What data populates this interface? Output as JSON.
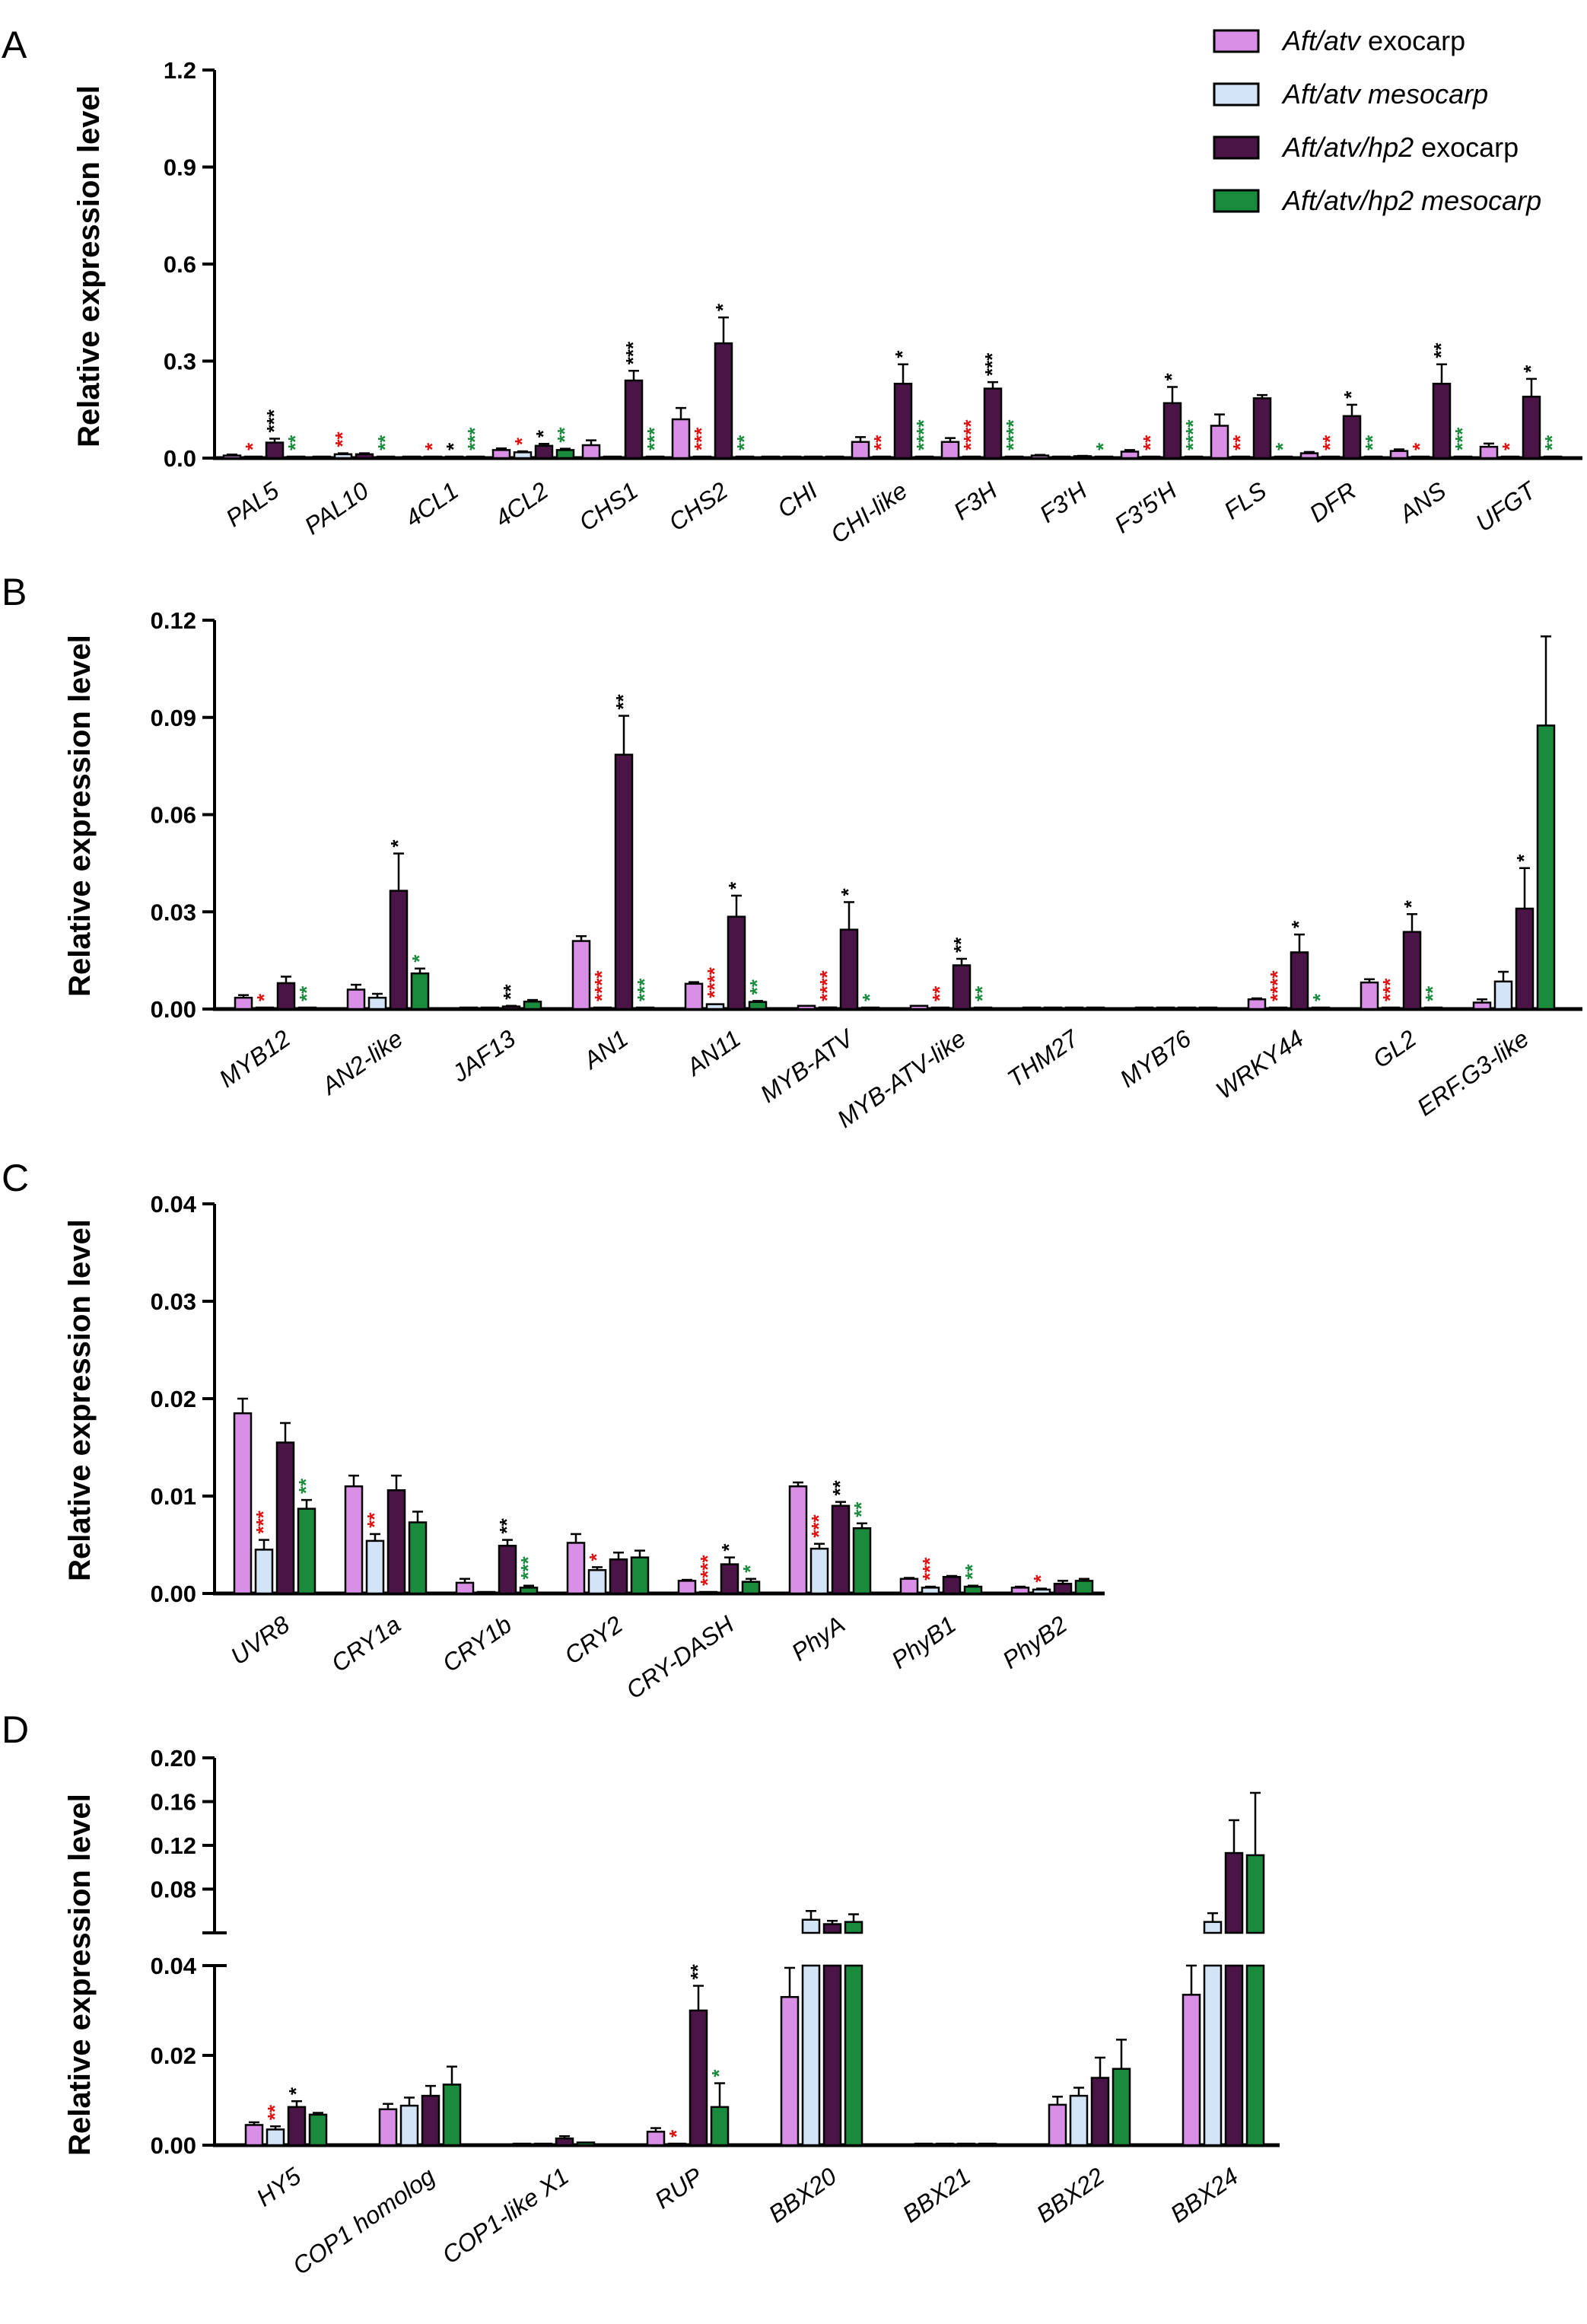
{
  "legend": {
    "entries": [
      {
        "pre": "Aft/atv",
        "post": " exocarp",
        "pre_italic": true,
        "post_italic": false,
        "color": "#DA8FE6"
      },
      {
        "pre": "Aft/atv mesocarp",
        "post": "",
        "pre_italic": true,
        "post_italic": true,
        "color": "#D4E4F7"
      },
      {
        "pre": "Aft/atv/hp2",
        "post": " exocarp",
        "pre_italic": true,
        "post_italic": false,
        "color": "#4A1446"
      },
      {
        "pre": "Aft/atv/hp2 mesocarp",
        "post": "",
        "pre_italic": true,
        "post_italic": true,
        "color": "#1A8A3C"
      }
    ]
  },
  "colors": {
    "series": [
      "#DA8FE6",
      "#D4E4F7",
      "#4A1446",
      "#1A8A3C"
    ],
    "star_black": "#000000",
    "star_red": "#E01010",
    "star_green": "#1A8A3C"
  },
  "chart_data": [
    {
      "type": "bar",
      "panel_label": "A",
      "ylabel": "Relative expression level",
      "ylim": [
        0,
        1.2
      ],
      "yticks": [
        "0.0",
        "0.3",
        "0.6",
        "0.9",
        "1.2"
      ],
      "ytick_values": [
        0,
        0.3,
        0.6,
        0.9,
        1.2
      ],
      "series_names": [
        "Aft/atv exocarp",
        "Aft/atv mesocarp",
        "Aft/atv/hp2 exocarp",
        "Aft/atv/hp2 mesocarp"
      ],
      "categories": [
        "PAL5",
        "PAL10",
        "4CL1",
        "4CL2",
        "CHS1",
        "CHS2",
        "CHI",
        "CHI-like",
        "F3H",
        "F3'H",
        "F3'5'H",
        "FLS",
        "DFR",
        "ANS",
        "UFGT"
      ],
      "values": [
        [
          0.008,
          0.002,
          0.048,
          0.003
        ],
        [
          0.003,
          0.012,
          0.012,
          0.003
        ],
        [
          0.002,
          0.001,
          0.003,
          0.001
        ],
        [
          0.025,
          0.018,
          0.038,
          0.025
        ],
        [
          0.04,
          0.002,
          0.24,
          0.003
        ],
        [
          0.12,
          0.003,
          0.355,
          0.004
        ],
        [
          0.002,
          0.001,
          0.002,
          0.001
        ],
        [
          0.05,
          0.003,
          0.23,
          0.004
        ],
        [
          0.05,
          0.003,
          0.215,
          0.004
        ],
        [
          0.008,
          0.002,
          0.006,
          0.001
        ],
        [
          0.02,
          0.003,
          0.17,
          0.004
        ],
        [
          0.1,
          0.003,
          0.185,
          0.004
        ],
        [
          0.015,
          0.002,
          0.13,
          0.004
        ],
        [
          0.022,
          0.003,
          0.23,
          0.004
        ],
        [
          0.035,
          0.003,
          0.19,
          0.004
        ]
      ],
      "errors": [
        [
          0.003,
          0,
          0.012,
          0
        ],
        [
          0.001,
          0.003,
          0.003,
          0
        ],
        [
          0,
          0,
          0,
          0
        ],
        [
          0.005,
          0.003,
          0.006,
          0.004
        ],
        [
          0.015,
          0,
          0.03,
          0
        ],
        [
          0.035,
          0,
          0.08,
          0
        ],
        [
          0,
          0,
          0,
          0
        ],
        [
          0.015,
          0,
          0.06,
          0
        ],
        [
          0.012,
          0,
          0.02,
          0
        ],
        [
          0.002,
          0,
          0.001,
          0
        ],
        [
          0.005,
          0,
          0.05,
          0
        ],
        [
          0.035,
          0,
          0.01,
          0
        ],
        [
          0.004,
          0,
          0.035,
          0
        ],
        [
          0.005,
          0,
          0.06,
          0
        ],
        [
          0.01,
          0,
          0.055,
          0
        ]
      ],
      "stars": [
        [
          "",
          "*",
          "***",
          "**"
        ],
        [
          "",
          "**",
          "",
          "**"
        ],
        [
          "",
          "*",
          "*",
          "***"
        ],
        [
          "",
          "*",
          "*",
          "**"
        ],
        [
          "",
          "",
          "***",
          "***"
        ],
        [
          "",
          "***",
          "*",
          "**"
        ],
        [
          "",
          "",
          "",
          ""
        ],
        [
          "",
          "**",
          "*",
          "****"
        ],
        [
          "",
          "****",
          "***",
          "****"
        ],
        [
          "",
          "",
          "",
          "*"
        ],
        [
          "",
          "**",
          "*",
          "****"
        ],
        [
          "",
          "**",
          "",
          "*"
        ],
        [
          "",
          "**",
          "*",
          "**"
        ],
        [
          "",
          "*",
          "**",
          "***"
        ],
        [
          "",
          "*",
          "*",
          "**"
        ]
      ],
      "star_colors": [
        [
          "",
          "red",
          "black",
          "green"
        ],
        [
          "",
          "red",
          "",
          "green"
        ],
        [
          "",
          "red",
          "black",
          "green"
        ],
        [
          "",
          "red",
          "black",
          "green"
        ],
        [
          "",
          "",
          "black",
          "green"
        ],
        [
          "",
          "red",
          "black",
          "green"
        ],
        [
          "",
          "",
          "",
          ""
        ],
        [
          "",
          "red",
          "black",
          "green"
        ],
        [
          "",
          "red",
          "black",
          "green"
        ],
        [
          "",
          "",
          "",
          "green"
        ],
        [
          "",
          "red",
          "black",
          "green"
        ],
        [
          "",
          "red",
          "",
          "green"
        ],
        [
          "",
          "red",
          "black",
          "green"
        ],
        [
          "",
          "red",
          "black",
          "green"
        ],
        [
          "",
          "red",
          "black",
          "green"
        ]
      ]
    },
    {
      "type": "bar",
      "panel_label": "B",
      "ylabel": "Relative expression level",
      "ylim": [
        0,
        0.12
      ],
      "yticks": [
        "0.00",
        "0.03",
        "0.06",
        "0.09",
        "0.12"
      ],
      "ytick_values": [
        0,
        0.03,
        0.06,
        0.09,
        0.12
      ],
      "series_names": [
        "Aft/atv exocarp",
        "Aft/atv mesocarp",
        "Aft/atv/hp2 exocarp",
        "Aft/atv/hp2 mesocarp"
      ],
      "categories": [
        "MYB12",
        "AN2-like",
        "JAF13",
        "AN1",
        "AN11",
        "MYB-ATV",
        "MYB-ATV-like",
        "THM27",
        "MYB76",
        "WRKY44",
        "GL2",
        "ERF.G3-like"
      ],
      "values": [
        [
          0.0035,
          0.0002,
          0.008,
          0.0003
        ],
        [
          0.006,
          0.0035,
          0.0365,
          0.011
        ],
        [
          0.0003,
          0.0002,
          0.0008,
          0.0023
        ],
        [
          0.021,
          0.0002,
          0.0785,
          0.0003
        ],
        [
          0.0078,
          0.0015,
          0.0285,
          0.0022
        ],
        [
          0.001,
          0.0005,
          0.0245,
          0.0003
        ],
        [
          0.001,
          0.0002,
          0.0135,
          0.0003
        ],
        [
          0.0003,
          0.0002,
          0.0003,
          0.0002
        ],
        [
          0.0003,
          0.0002,
          0.0003,
          0.0002
        ],
        [
          0.003,
          0.0002,
          0.0175,
          0.0003
        ],
        [
          0.0082,
          0.0003,
          0.0238,
          0.0003
        ],
        [
          0.002,
          0.0085,
          0.031,
          0.0875
        ]
      ],
      "errors": [
        [
          0.0008,
          0,
          0.002,
          0
        ],
        [
          0.0015,
          0.0012,
          0.0115,
          0.0015
        ],
        [
          0,
          0,
          0.0002,
          0.0005
        ],
        [
          0.0015,
          0,
          0.012,
          0
        ],
        [
          0.0005,
          0,
          0.0065,
          0.0003
        ],
        [
          0,
          0,
          0.0085,
          0
        ],
        [
          0,
          0,
          0.002,
          0
        ],
        [
          0,
          0,
          0,
          0
        ],
        [
          0,
          0,
          0,
          0
        ],
        [
          0.0003,
          0,
          0.0055,
          0
        ],
        [
          0.001,
          0,
          0.0055,
          0
        ],
        [
          0.001,
          0.003,
          0.0125,
          0.0275
        ]
      ],
      "stars": [
        [
          "",
          "*",
          "",
          "**"
        ],
        [
          "",
          "",
          "*",
          "*"
        ],
        [
          "",
          "",
          "**",
          ""
        ],
        [
          "",
          "****",
          "**",
          "***"
        ],
        [
          "",
          "****",
          "*",
          "**"
        ],
        [
          "",
          "****",
          "*",
          "*"
        ],
        [
          "",
          "**",
          "**",
          "**"
        ],
        [
          "",
          "",
          "",
          ""
        ],
        [
          "",
          "",
          "",
          ""
        ],
        [
          "",
          "****",
          "*",
          "*"
        ],
        [
          "",
          "***",
          "*",
          "**"
        ],
        [
          "",
          "",
          "*",
          ""
        ]
      ],
      "star_colors": [
        [
          "",
          "red",
          "",
          "green"
        ],
        [
          "",
          "",
          "black",
          "green"
        ],
        [
          "",
          "",
          "black",
          ""
        ],
        [
          "",
          "red",
          "black",
          "green"
        ],
        [
          "",
          "red",
          "black",
          "green"
        ],
        [
          "",
          "red",
          "black",
          "green"
        ],
        [
          "",
          "red",
          "black",
          "green"
        ],
        [
          "",
          "",
          "",
          ""
        ],
        [
          "",
          "",
          "",
          ""
        ],
        [
          "",
          "red",
          "black",
          "green"
        ],
        [
          "",
          "red",
          "black",
          "green"
        ],
        [
          "",
          "",
          "black",
          ""
        ]
      ]
    },
    {
      "type": "bar",
      "panel_label": "C",
      "ylabel": "Relative expression level",
      "ylim": [
        0,
        0.04
      ],
      "yticks": [
        "0.00",
        "0.01",
        "0.02",
        "0.03",
        "0.04"
      ],
      "ytick_values": [
        0,
        0.01,
        0.02,
        0.03,
        0.04
      ],
      "series_names": [
        "Aft/atv exocarp",
        "Aft/atv mesocarp",
        "Aft/atv/hp2 exocarp",
        "Aft/atv/hp2 mesocarp"
      ],
      "categories": [
        "UVR8",
        "CRY1a",
        "CRY1b",
        "CRY2",
        "CRY-DASH",
        "PhyA",
        "PhyB1",
        "PhyB2"
      ],
      "values": [
        [
          0.0185,
          0.0045,
          0.0155,
          0.0087
        ],
        [
          0.011,
          0.0054,
          0.0106,
          0.0073
        ],
        [
          0.0011,
          0.0001,
          0.0049,
          0.0006
        ],
        [
          0.0052,
          0.0024,
          0.0035,
          0.0037
        ],
        [
          0.0013,
          0.0001,
          0.003,
          0.0012
        ],
        [
          0.011,
          0.0046,
          0.009,
          0.0067
        ],
        [
          0.0015,
          0.0006,
          0.0017,
          0.0007
        ],
        [
          0.0006,
          0.0004,
          0.001,
          0.0013
        ]
      ],
      "errors": [
        [
          0.0015,
          0.001,
          0.002,
          0.0009
        ],
        [
          0.0011,
          0.0007,
          0.0015,
          0.0011
        ],
        [
          0.0004,
          0,
          0.0006,
          0.0002
        ],
        [
          0.0009,
          0.0003,
          0.0007,
          0.0007
        ],
        [
          0.0001,
          0,
          0.0007,
          0.0003
        ],
        [
          0.0004,
          0.0005,
          0.0004,
          0.0005
        ],
        [
          0.0001,
          0.0001,
          0.0001,
          0.0001
        ],
        [
          0.0001,
          0.0001,
          0.0003,
          0.0002
        ]
      ],
      "stars": [
        [
          "",
          "***",
          "",
          "**"
        ],
        [
          "",
          "**",
          "",
          ""
        ],
        [
          "",
          "",
          "**",
          "***"
        ],
        [
          "",
          "*",
          "",
          ""
        ],
        [
          "",
          "****",
          "*",
          "*"
        ],
        [
          "",
          "***",
          "**",
          "**"
        ],
        [
          "",
          "***",
          "",
          "**"
        ],
        [
          "",
          "*",
          "",
          ""
        ]
      ],
      "star_colors": [
        [
          "",
          "red",
          "",
          "green"
        ],
        [
          "",
          "red",
          "",
          ""
        ],
        [
          "",
          "",
          "black",
          "green"
        ],
        [
          "",
          "red",
          "",
          ""
        ],
        [
          "",
          "red",
          "black",
          "green"
        ],
        [
          "",
          "red",
          "black",
          "green"
        ],
        [
          "",
          "red",
          "",
          "green"
        ],
        [
          "",
          "red",
          "",
          ""
        ]
      ]
    },
    {
      "type": "bar",
      "panel_label": "D",
      "ylabel": "Relative expression level",
      "axis_break": true,
      "lower_ylim": [
        0,
        0.04
      ],
      "upper_ylim": [
        0.04,
        0.2
      ],
      "lower_yticks": [
        "0.00",
        "0.02",
        "0.04"
      ],
      "lower_ytick_values": [
        0,
        0.02,
        0.04
      ],
      "upper_yticks": [
        "0.08",
        "0.12",
        "0.16",
        "0.20"
      ],
      "upper_ytick_values": [
        0.08,
        0.12,
        0.16,
        0.2
      ],
      "series_names": [
        "Aft/atv exocarp",
        "Aft/atv mesocarp",
        "Aft/atv/hp2 exocarp",
        "Aft/atv/hp2 mesocarp"
      ],
      "categories": [
        "HY5",
        "COP1 homolog",
        "COP1-like X1",
        "RUP",
        "BBX20",
        "BBX21",
        "BBX22",
        "BBX24"
      ],
      "values": [
        [
          0.0045,
          0.0035,
          0.0085,
          0.0068
        ],
        [
          0.008,
          0.0088,
          0.011,
          0.0135
        ],
        [
          0.0003,
          0.0002,
          0.0015,
          0.0006
        ],
        [
          0.003,
          0.0002,
          0.03,
          0.0085
        ],
        [
          0.033,
          0.052,
          0.048,
          0.05
        ],
        [
          0.0002,
          0.0002,
          0.0002,
          0.0002
        ],
        [
          0.009,
          0.011,
          0.015,
          0.017
        ],
        [
          0.0335,
          0.05,
          0.113,
          0.111
        ]
      ],
      "errors": [
        [
          0.0006,
          0.0007,
          0.0013,
          0.0004
        ],
        [
          0.0012,
          0.0018,
          0.0022,
          0.004
        ],
        [
          0,
          0,
          0.0005,
          0
        ],
        [
          0.0008,
          0,
          0.0055,
          0.0053
        ],
        [
          0.0065,
          0.008,
          0.003,
          0.007
        ],
        [
          0,
          0,
          0,
          0
        ],
        [
          0.0018,
          0.0018,
          0.0045,
          0.0065
        ],
        [
          0.0065,
          0.008,
          0.03,
          0.057
        ]
      ],
      "stars": [
        [
          "",
          "**",
          "*",
          ""
        ],
        [
          "",
          "",
          "",
          ""
        ],
        [
          "",
          "",
          "",
          ""
        ],
        [
          "",
          "*",
          "**",
          "*"
        ],
        [
          "",
          "",
          "",
          ""
        ],
        [
          "",
          "",
          "",
          ""
        ],
        [
          "",
          "",
          "",
          ""
        ],
        [
          "",
          "",
          "",
          ""
        ]
      ],
      "star_colors": [
        [
          "",
          "red",
          "black",
          ""
        ],
        [
          "",
          "",
          "",
          ""
        ],
        [
          "",
          "",
          "",
          ""
        ],
        [
          "",
          "red",
          "black",
          "green"
        ],
        [
          "",
          "",
          "",
          ""
        ],
        [
          "",
          "",
          "",
          ""
        ],
        [
          "",
          "",
          "",
          ""
        ],
        [
          "",
          "",
          "",
          ""
        ]
      ]
    }
  ]
}
